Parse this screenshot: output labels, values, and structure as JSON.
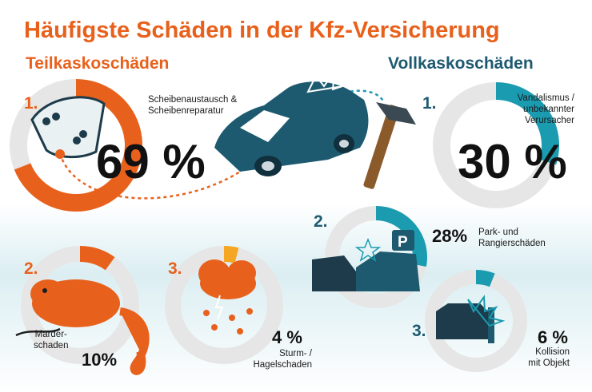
{
  "title": "Häufigste Schäden in der Kfz-Versicherung",
  "sections": {
    "left": "Teilkaskoschäden",
    "right": "Vollkaskoschäden"
  },
  "colors": {
    "orange": "#e8611c",
    "orange_light": "#f5a623",
    "teal": "#1a9bb0",
    "navy": "#1d5a70",
    "ring_bg": "#e6e6e6"
  },
  "chart_data": [
    {
      "type": "pie",
      "group": "Teilkaskoschäden",
      "items": [
        {
          "rank": "1.",
          "label_lines": [
            "Scheibenaustausch &",
            "Scheibenreparatur"
          ],
          "value": 69,
          "display": "69 %"
        },
        {
          "rank": "2.",
          "label_lines": [
            "Marder-",
            "schaden"
          ],
          "value": 10,
          "display": "10%"
        },
        {
          "rank": "3.",
          "label_lines": [
            "Sturm- /",
            "Hagelschaden"
          ],
          "value": 4,
          "display": "4 %"
        }
      ]
    },
    {
      "type": "pie",
      "group": "Vollkaskoschäden",
      "items": [
        {
          "rank": "1.",
          "label_lines": [
            "Vandalismus /",
            "unbekannter",
            "Verursacher"
          ],
          "value": 30,
          "display": "30 %"
        },
        {
          "rank": "2.",
          "label_lines": [
            "Park- und",
            "Rangierschäden"
          ],
          "value": 28,
          "display": "28%"
        },
        {
          "rank": "3.",
          "label_lines": [
            "Kollision",
            "mit Objekt"
          ],
          "value": 6,
          "display": "6 %"
        }
      ]
    }
  ]
}
